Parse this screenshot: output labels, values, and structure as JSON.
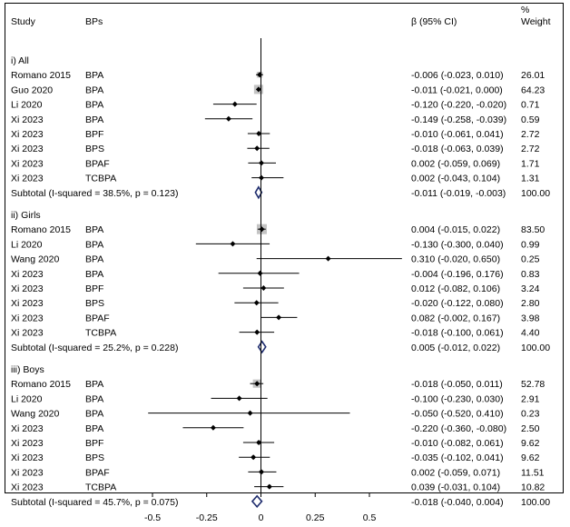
{
  "chart_data": {
    "type": "forest",
    "headers": {
      "study": "Study",
      "bps": "BPs",
      "ci": "β (95% CI)",
      "weight_line1": "%",
      "weight_line2": "Weight"
    },
    "x_axis": {
      "ticks": [
        -0.5,
        -0.25,
        0,
        0.25,
        0.5
      ],
      "tick_labels": [
        "-0.5",
        "-0.25",
        "0",
        "0.25",
        "0.5"
      ],
      "range": [
        -0.72,
        0.72
      ]
    },
    "groups": [
      {
        "label": "i) All",
        "rows": [
          {
            "study": "Romano 2015",
            "bp": "BPA",
            "est": -0.006,
            "lo": -0.023,
            "hi": 0.01,
            "ci": "-0.006 (-0.023, 0.010)",
            "weight": "26.01"
          },
          {
            "study": "Guo 2020",
            "bp": "BPA",
            "est": -0.011,
            "lo": -0.021,
            "hi": 0.0,
            "ci": "-0.011 (-0.021, 0.000)",
            "weight": "64.23"
          },
          {
            "study": "Li 2020",
            "bp": "BPA",
            "est": -0.12,
            "lo": -0.22,
            "hi": -0.02,
            "ci": "-0.120 (-0.220, -0.020)",
            "weight": "0.71"
          },
          {
            "study": "Xi 2023",
            "bp": "BPA",
            "est": -0.149,
            "lo": -0.258,
            "hi": -0.039,
            "ci": "-0.149 (-0.258, -0.039)",
            "weight": "0.59"
          },
          {
            "study": "Xi 2023",
            "bp": "BPF",
            "est": -0.01,
            "lo": -0.061,
            "hi": 0.041,
            "ci": "-0.010 (-0.061, 0.041)",
            "weight": "2.72"
          },
          {
            "study": "Xi 2023",
            "bp": "BPS",
            "est": -0.018,
            "lo": -0.063,
            "hi": 0.039,
            "ci": "-0.018 (-0.063, 0.039)",
            "weight": "2.72"
          },
          {
            "study": "Xi 2023",
            "bp": "BPAF",
            "est": 0.002,
            "lo": -0.059,
            "hi": 0.069,
            "ci": "0.002 (-0.059, 0.069)",
            "weight": "1.71"
          },
          {
            "study": "Xi 2023",
            "bp": "TCBPA",
            "est": 0.002,
            "lo": -0.043,
            "hi": 0.104,
            "ci": "0.002 (-0.043, 0.104)",
            "weight": "1.31"
          }
        ],
        "subtotal": {
          "label": "Subtotal  (I-squared = 38.5%, p = 0.123)",
          "est": -0.011,
          "lo": -0.019,
          "hi": -0.003,
          "ci": "-0.011 (-0.019, -0.003)",
          "weight": "100.00"
        }
      },
      {
        "label": "ii) Girls",
        "rows": [
          {
            "study": "Romano 2015",
            "bp": "BPA",
            "est": 0.004,
            "lo": -0.015,
            "hi": 0.022,
            "ci": "0.004 (-0.015, 0.022)",
            "weight": "83.50"
          },
          {
            "study": "Li 2020",
            "bp": "BPA",
            "est": -0.13,
            "lo": -0.3,
            "hi": 0.04,
            "ci": "-0.130 (-0.300, 0.040)",
            "weight": "0.99"
          },
          {
            "study": "Wang 2020",
            "bp": "BPA",
            "est": 0.31,
            "lo": -0.02,
            "hi": 0.65,
            "ci": "0.310 (-0.020, 0.650)",
            "weight": "0.25"
          },
          {
            "study": "Xi 2023",
            "bp": "BPA",
            "est": -0.004,
            "lo": -0.196,
            "hi": 0.176,
            "ci": "-0.004 (-0.196, 0.176)",
            "weight": "0.83"
          },
          {
            "study": "Xi 2023",
            "bp": "BPF",
            "est": 0.012,
            "lo": -0.082,
            "hi": 0.106,
            "ci": "0.012 (-0.082, 0.106)",
            "weight": "3.24"
          },
          {
            "study": "Xi 2023",
            "bp": "BPS",
            "est": -0.02,
            "lo": -0.122,
            "hi": 0.08,
            "ci": "-0.020 (-0.122, 0.080)",
            "weight": "2.80"
          },
          {
            "study": "Xi 2023",
            "bp": "BPAF",
            "est": 0.082,
            "lo": -0.002,
            "hi": 0.167,
            "ci": "0.082 (-0.002, 0.167)",
            "weight": "3.98"
          },
          {
            "study": "Xi 2023",
            "bp": "TCBPA",
            "est": -0.018,
            "lo": -0.1,
            "hi": 0.061,
            "ci": "-0.018 (-0.100, 0.061)",
            "weight": "4.40"
          }
        ],
        "subtotal": {
          "label": "Subtotal  (I-squared = 25.2%, p = 0.228)",
          "est": 0.005,
          "lo": -0.012,
          "hi": 0.022,
          "ci": "0.005 (-0.012, 0.022)",
          "weight": "100.00"
        }
      },
      {
        "label": "iii) Boys",
        "rows": [
          {
            "study": "Romano 2015",
            "bp": "BPA",
            "est": -0.018,
            "lo": -0.05,
            "hi": 0.011,
            "ci": "-0.018 (-0.050, 0.011)",
            "weight": "52.78"
          },
          {
            "study": "Li 2020",
            "bp": "BPA",
            "est": -0.1,
            "lo": -0.23,
            "hi": 0.03,
            "ci": "-0.100 (-0.230, 0.030)",
            "weight": "2.91"
          },
          {
            "study": "Wang 2020",
            "bp": "BPA",
            "est": -0.05,
            "lo": -0.52,
            "hi": 0.41,
            "ci": "-0.050 (-0.520, 0.410)",
            "weight": "0.23"
          },
          {
            "study": "Xi 2023",
            "bp": "BPA",
            "est": -0.22,
            "lo": -0.36,
            "hi": -0.08,
            "ci": "-0.220 (-0.360, -0.080)",
            "weight": "2.50"
          },
          {
            "study": "Xi 2023",
            "bp": "BPF",
            "est": -0.01,
            "lo": -0.082,
            "hi": 0.061,
            "ci": "-0.010 (-0.082, 0.061)",
            "weight": "9.62"
          },
          {
            "study": "Xi 2023",
            "bp": "BPS",
            "est": -0.035,
            "lo": -0.102,
            "hi": 0.041,
            "ci": "-0.035 (-0.102, 0.041)",
            "weight": "9.62"
          },
          {
            "study": "Xi 2023",
            "bp": "BPAF",
            "est": 0.002,
            "lo": -0.059,
            "hi": 0.071,
            "ci": "0.002 (-0.059, 0.071)",
            "weight": "11.51"
          },
          {
            "study": "Xi 2023",
            "bp": "TCBPA",
            "est": 0.039,
            "lo": -0.031,
            "hi": 0.104,
            "ci": "0.039 (-0.031, 0.104)",
            "weight": "10.82"
          }
        ],
        "subtotal": {
          "label": "Subtotal  (I-squared = 45.7%, p = 0.075)",
          "est": -0.018,
          "lo": -0.04,
          "hi": 0.004,
          "ci": "-0.018 (-0.040, 0.004)",
          "weight": "100.00"
        }
      }
    ]
  },
  "colors": {
    "weight_box": "#c4c4c4",
    "point": "#000000",
    "diamond": "#1f2d6e",
    "line": "#000000"
  }
}
